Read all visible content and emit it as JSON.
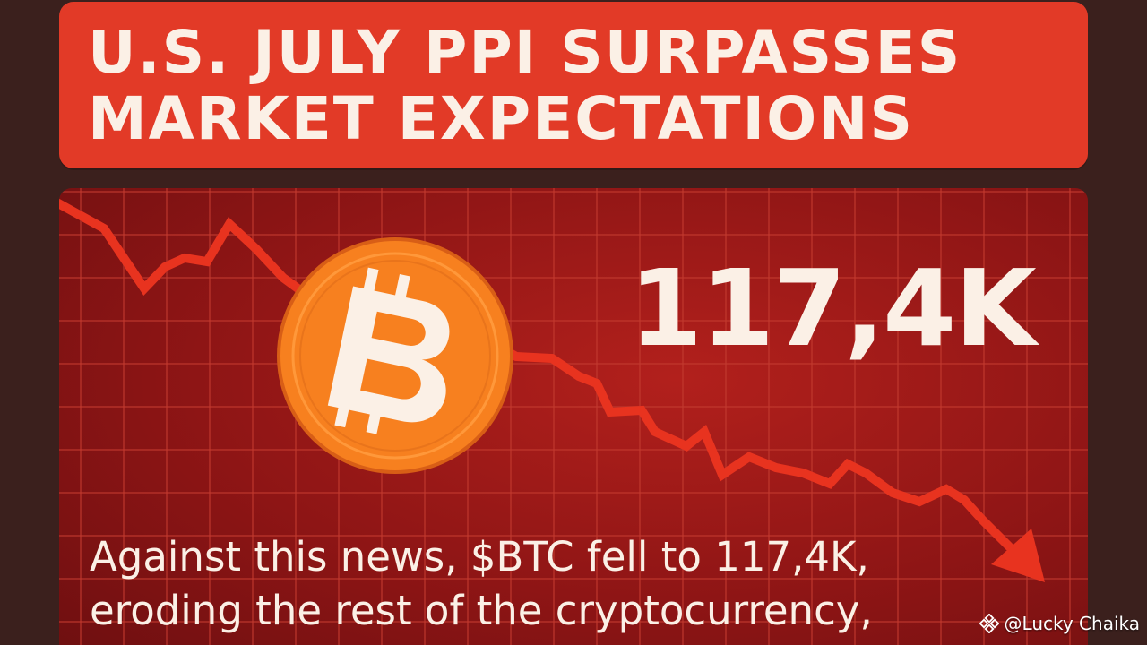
{
  "headline": {
    "line1": "U.S. JULY PPI SURPASSES",
    "line2": "MARKET EXPECTATIONS"
  },
  "price": {
    "value": "117,4K"
  },
  "news": {
    "text": "Against this news, $BTC fell to 117,4K,\neroding the rest of the cryptocurrency,"
  },
  "coin": {
    "icon": "bitcoin-icon",
    "glyph": "₿",
    "color": "#f7801f"
  },
  "watermark": {
    "icon": "binance-icon",
    "handle": "@Lucky Chaika"
  },
  "colors": {
    "banner": "#e23a27",
    "panel": "#a01a17",
    "trend_line": "#e8331f",
    "text": "#fbf0e6"
  }
}
